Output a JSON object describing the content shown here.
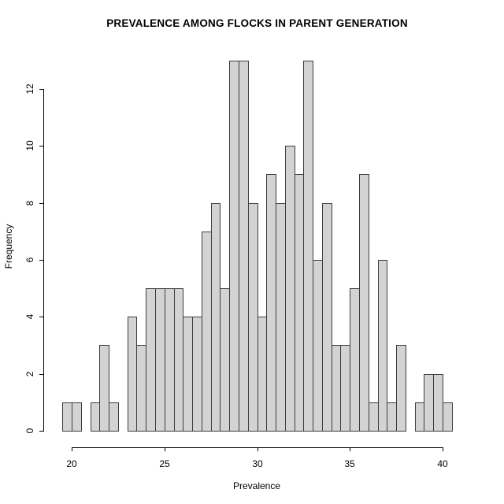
{
  "chart_data": {
    "type": "bar",
    "subtype": "histogram",
    "title": "PREVALENCE AMONG FLOCKS IN PARENT GENERATION",
    "xlabel": "Prevalence",
    "ylabel": "Frequency",
    "bin_start": 19.5,
    "bin_width": 0.5,
    "counts": [
      1,
      1,
      0,
      1,
      3,
      1,
      0,
      4,
      3,
      5,
      5,
      5,
      5,
      4,
      4,
      7,
      8,
      5,
      13,
      13,
      8,
      4,
      9,
      8,
      10,
      9,
      13,
      6,
      8,
      3,
      3,
      5,
      9,
      1,
      6,
      1,
      3,
      0,
      1,
      2,
      2,
      1
    ],
    "total_observations": 200,
    "x_ticks": [
      20,
      25,
      30,
      35,
      40
    ],
    "y_ticks": [
      0,
      2,
      4,
      6,
      8,
      10,
      12
    ],
    "xlim": [
      19.5,
      40.5
    ],
    "ylim": [
      0,
      13
    ],
    "grid": false,
    "legend": "none",
    "bar_fill": "#d3d3d3",
    "bar_border": "#3d3d3d",
    "axis_color": "#000000"
  }
}
